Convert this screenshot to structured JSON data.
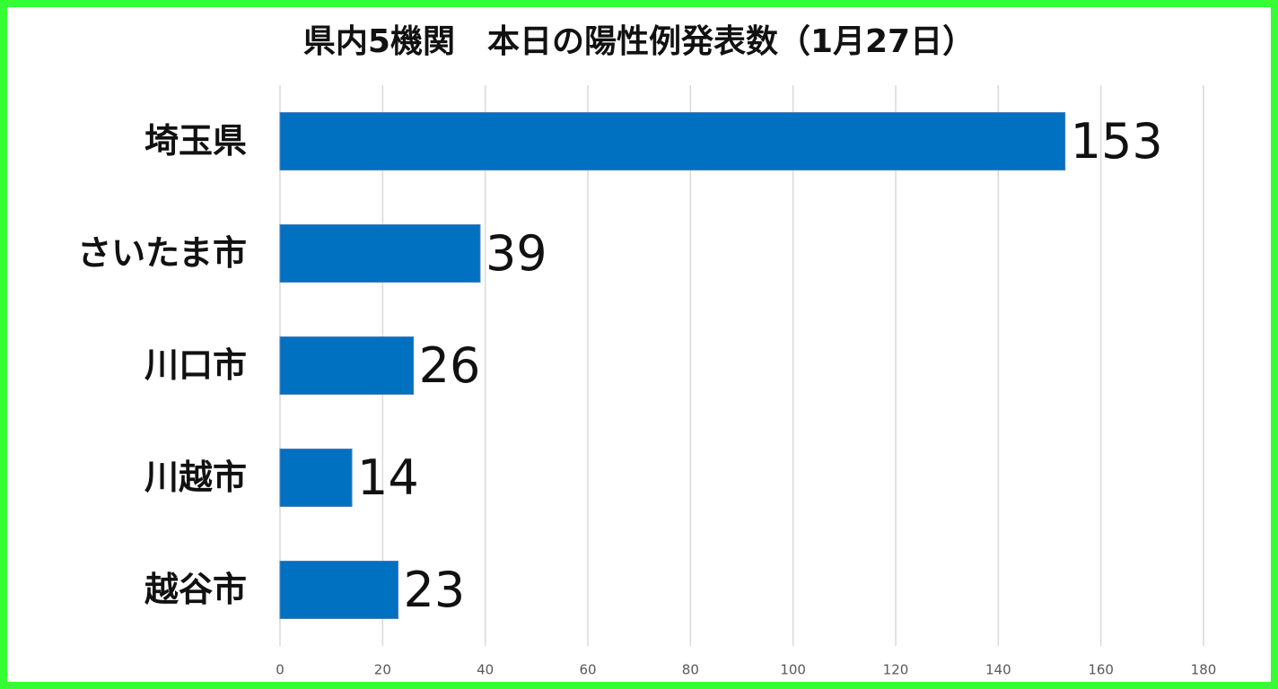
{
  "chart_data": {
    "type": "bar",
    "orientation": "horizontal",
    "title": "県内5機関　本日の陽性例発表数（1月27日）",
    "categories": [
      "埼玉県",
      "さいたま市",
      "川口市",
      "川越市",
      "越谷市"
    ],
    "values": [
      153,
      39,
      26,
      14,
      23
    ],
    "color": "#0070c0",
    "xlim": [
      0,
      180
    ],
    "xticks": [
      0,
      20,
      40,
      60,
      80,
      100,
      120,
      140,
      160,
      180
    ],
    "grid": true
  }
}
